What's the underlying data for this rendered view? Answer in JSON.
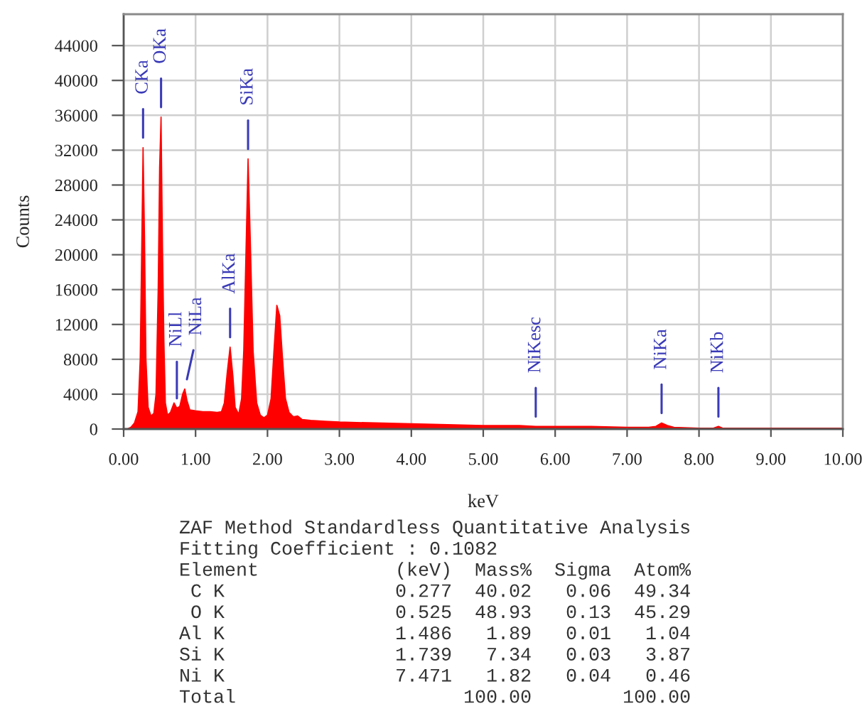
{
  "chart_data": {
    "type": "area",
    "xlabel": "keV",
    "ylabel": "Counts",
    "x": [
      0.0,
      0.05,
      0.1,
      0.15,
      0.2,
      0.23,
      0.25,
      0.27,
      0.29,
      0.31,
      0.34,
      0.38,
      0.42,
      0.45,
      0.48,
      0.5,
      0.52,
      0.54,
      0.56,
      0.58,
      0.61,
      0.65,
      0.7,
      0.74,
      0.78,
      0.82,
      0.85,
      0.88,
      0.92,
      1.0,
      1.1,
      1.2,
      1.3,
      1.36,
      1.4,
      1.44,
      1.48,
      1.52,
      1.55,
      1.6,
      1.64,
      1.67,
      1.7,
      1.73,
      1.76,
      1.8,
      1.85,
      1.9,
      1.95,
      2.0,
      2.05,
      2.09,
      2.13,
      2.17,
      2.21,
      2.25,
      2.3,
      2.36,
      2.42,
      2.48,
      2.6,
      2.8,
      3.0,
      3.5,
      4.0,
      4.5,
      5.0,
      5.5,
      5.73,
      6.0,
      6.5,
      7.0,
      7.3,
      7.4,
      7.48,
      7.56,
      7.65,
      8.0,
      8.2,
      8.27,
      8.33,
      9.0,
      10.0
    ],
    "series": [
      {
        "color": "#ff0000",
        "values": [
          0,
          0,
          200,
          700,
          2000,
          8000,
          20000,
          32300,
          22000,
          8000,
          2500,
          1500,
          1800,
          4000,
          16000,
          30000,
          35800,
          21000,
          10000,
          3000,
          1600,
          1900,
          3000,
          2400,
          2600,
          4000,
          4600,
          3300,
          2200,
          2100,
          2000,
          2000,
          1900,
          2000,
          3000,
          6500,
          9400,
          6000,
          2500,
          1700,
          3500,
          9000,
          20000,
          31000,
          22000,
          9000,
          3000,
          1600,
          1300,
          1600,
          3500,
          9000,
          14200,
          13000,
          8000,
          3500,
          1900,
          1400,
          1500,
          1100,
          1000,
          900,
          800,
          700,
          600,
          500,
          400,
          400,
          300,
          300,
          300,
          200,
          200,
          300,
          700,
          400,
          200,
          100,
          100,
          300,
          100,
          100,
          100
        ]
      }
    ],
    "xlim": [
      0,
      10
    ],
    "ylim": [
      0,
      47600
    ],
    "xticks": [
      {
        "value": 0,
        "label": "0.00"
      },
      {
        "value": 1,
        "label": "1.00"
      },
      {
        "value": 2,
        "label": "2.00"
      },
      {
        "value": 3,
        "label": "3.00"
      },
      {
        "value": 4,
        "label": "4.00"
      },
      {
        "value": 5,
        "label": "5.00"
      },
      {
        "value": 6,
        "label": "6.00"
      },
      {
        "value": 7,
        "label": "7.00"
      },
      {
        "value": 8,
        "label": "8.00"
      },
      {
        "value": 9,
        "label": "9.00"
      },
      {
        "value": 10,
        "label": "10.00"
      }
    ],
    "yticks": [
      0,
      4000,
      8000,
      12000,
      16000,
      20000,
      24000,
      28000,
      32000,
      36000,
      40000,
      44000
    ],
    "grid": true,
    "annotations": [
      {
        "text": "CKa",
        "x": 0.27,
        "y": 32300
      },
      {
        "text": "OKa",
        "x": 0.52,
        "y": 35800
      },
      {
        "text": "NiLl",
        "x": 0.74,
        "y": 2400
      },
      {
        "text": "NiLa",
        "x": 0.85,
        "y": 4600
      },
      {
        "text": "AlKa",
        "x": 1.48,
        "y": 9400
      },
      {
        "text": "SiKa",
        "x": 1.73,
        "y": 31000
      },
      {
        "text": "NiKesc",
        "x": 5.73,
        "y": 300
      },
      {
        "text": "NiKa",
        "x": 7.48,
        "y": 700
      },
      {
        "text": "NiKb",
        "x": 8.27,
        "y": 300
      },
      "ZAF Method Standardless Quantitative Analysis",
      "Fitting Coefficient : 0.1082",
      "Element            (keV)  Mass%  Sigma  Atom%",
      " C K               0.277  40.02   0.06  49.34",
      " O K               0.525  48.93   0.13  45.29",
      "Al K               1.486   1.89   0.01   1.04",
      "Si K               1.739   7.34   0.03   3.87",
      "Ni K               7.471   1.82   0.04   0.46",
      "Total                    100.00        100.00"
    ]
  }
}
